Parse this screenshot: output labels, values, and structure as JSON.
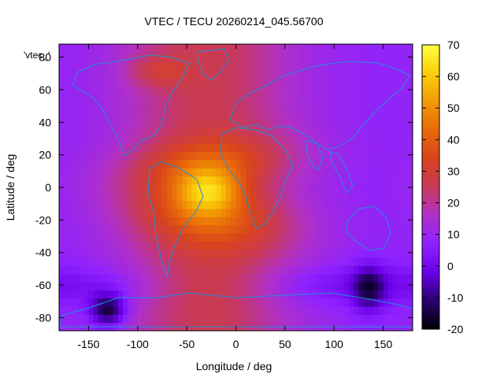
{
  "chart_data": {
    "type": "heatmap",
    "title": "VTEC / TECU 20260214_045.56700",
    "xlabel": "Longitude / deg",
    "ylabel": "Latitude / deg",
    "series_label": "'vtec_'",
    "xlim": [
      -180,
      180
    ],
    "ylim": [
      -88,
      88
    ],
    "xticks": [
      -150,
      -100,
      -50,
      0,
      50,
      100,
      150
    ],
    "yticks": [
      -80,
      -60,
      -40,
      -20,
      0,
      20,
      40,
      60,
      80
    ],
    "colorbar": {
      "min": -20,
      "max": 70,
      "ticks": [
        -20,
        -10,
        0,
        10,
        20,
        30,
        40,
        50,
        60,
        70
      ],
      "palette": [
        "#000000",
        "#2a0070",
        "#6a00e8",
        "#8e22ff",
        "#b030c8",
        "#c83a5a",
        "#d8431c",
        "#e86a0a",
        "#f29a05",
        "#fbd00a",
        "#ffff40"
      ]
    },
    "grid_step_deg": 5,
    "features": {
      "peak": {
        "lon": -28,
        "lat": -2,
        "value": 68
      },
      "northern_crest": {
        "lat": 15,
        "value": 40
      },
      "southern_crest": {
        "lat": -18,
        "value": 42
      },
      "minimum_south": {
        "lon": -130,
        "lat": -75,
        "value": -18
      },
      "minimum_south_east": {
        "lon": 135,
        "lat": -62,
        "value": -10
      }
    },
    "overlay": "coastlines"
  }
}
